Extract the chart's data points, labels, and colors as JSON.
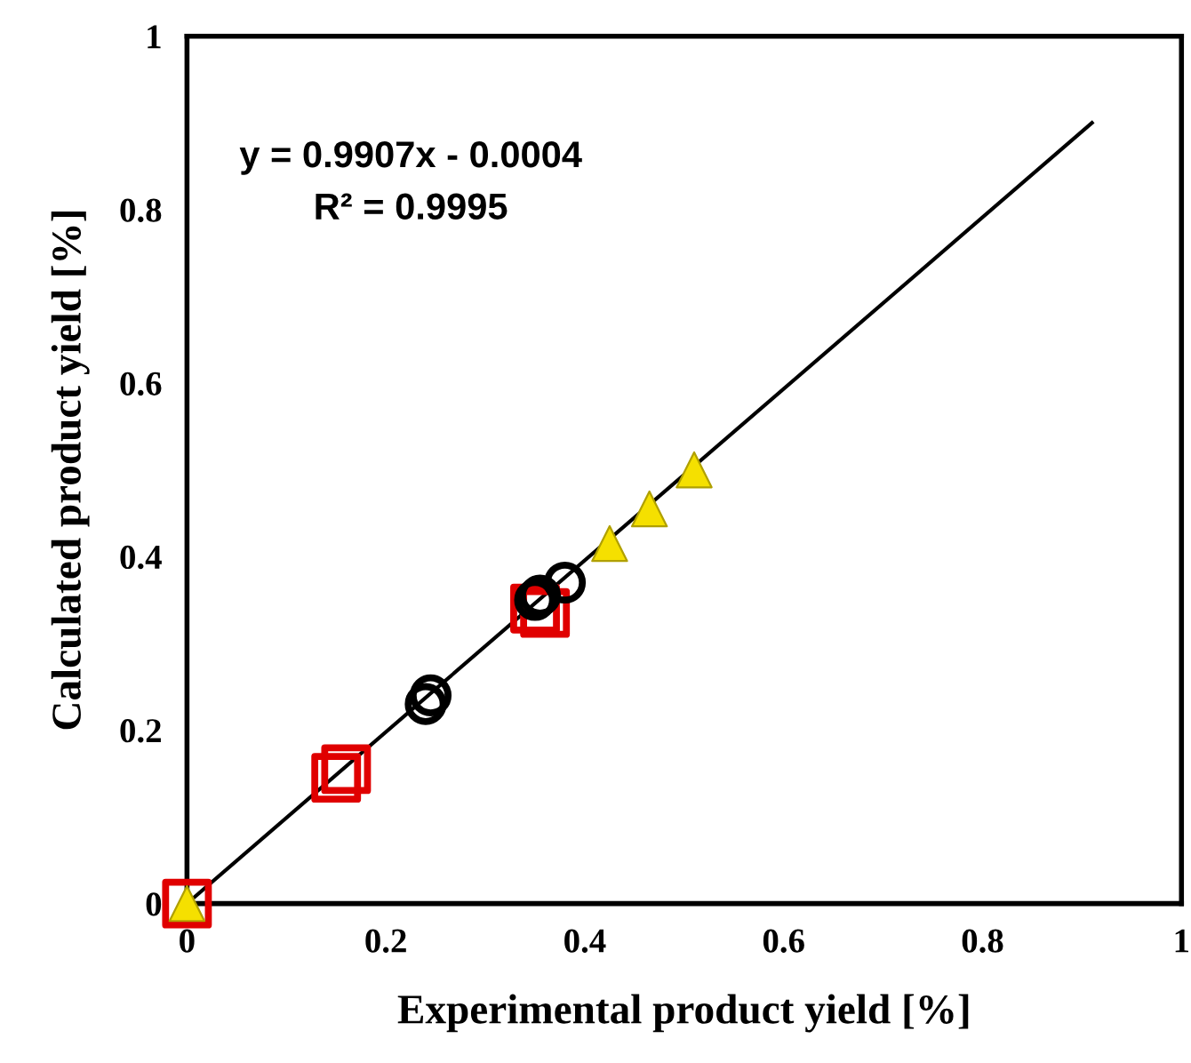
{
  "chart_data": {
    "type": "scatter",
    "xlabel": "Experimental product yield [%]",
    "ylabel": "Calculated product yield [%]",
    "xlim": [
      0,
      1
    ],
    "ylim": [
      0,
      1
    ],
    "xticks": [
      0,
      0.2,
      0.4,
      0.6,
      0.8,
      1
    ],
    "yticks": [
      0,
      0.2,
      0.4,
      0.6,
      0.8,
      1
    ],
    "grid": false,
    "legend": false,
    "series": [
      {
        "type": "line",
        "color": "#000000",
        "marker": "none",
        "x": [
          0,
          0.91
        ],
        "values": [
          0,
          0.9
        ]
      },
      {
        "color": "#e00000",
        "marker": "square",
        "x": [
          0,
          0.15,
          0.16,
          0.35,
          0.36
        ],
        "values": [
          0,
          0.145,
          0.155,
          0.34,
          0.335
        ]
      },
      {
        "color": "#000000",
        "marker": "circle",
        "x": [
          0.24,
          0.245,
          0.35,
          0.355,
          0.38
        ],
        "values": [
          0.23,
          0.24,
          0.35,
          0.355,
          0.37
        ]
      },
      {
        "color": "#f5e000",
        "marker": "triangle",
        "x": [
          0,
          0.425,
          0.465,
          0.51
        ],
        "values": [
          0,
          0.415,
          0.455,
          0.5
        ]
      }
    ],
    "annotations": [
      "y = 0.9907x - 0.0004",
      "R² = 0.9995"
    ]
  }
}
